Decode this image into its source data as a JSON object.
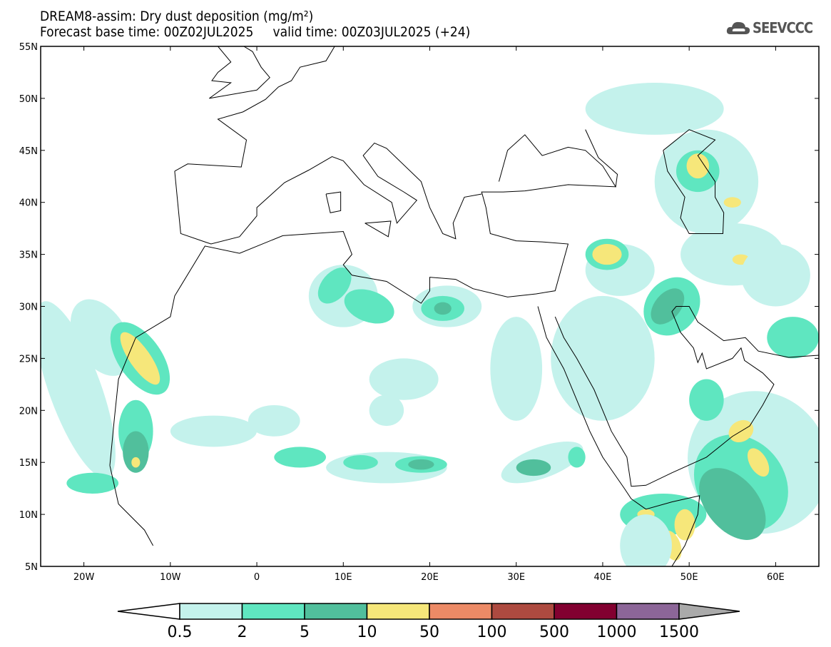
{
  "header": {
    "title": "DREAM8-assim: Dry dust deposition (mg/m²)",
    "subtitle": "Forecast base time: 00Z02JUL2025     valid time: 00Z03JUL2025 (+24)",
    "logo_text": "SEEVCCC",
    "logo_icon": "cloud-icon"
  },
  "map": {
    "lon_range": [
      -25,
      65
    ],
    "lat_range": [
      5,
      55
    ],
    "lat_ticks": [
      "55N",
      "50N",
      "45N",
      "40N",
      "35N",
      "30N",
      "25N",
      "20N",
      "15N",
      "10N",
      "5N"
    ],
    "lon_ticks": [
      "20W",
      "10W",
      "0",
      "10E",
      "20E",
      "30E",
      "40E",
      "50E",
      "60E"
    ]
  },
  "legend": {
    "labels": [
      "0.5",
      "2",
      "5",
      "10",
      "50",
      "100",
      "500",
      "1000",
      "1500"
    ],
    "colors": [
      "#c4f2ec",
      "#5fe6c0",
      "#51bf9c",
      "#f6e77a",
      "#ec8a66",
      "#ad4a40",
      "#820030",
      "#8c6698"
    ],
    "over_color": "#aaaaaa",
    "under_color": "#ffffff"
  }
}
